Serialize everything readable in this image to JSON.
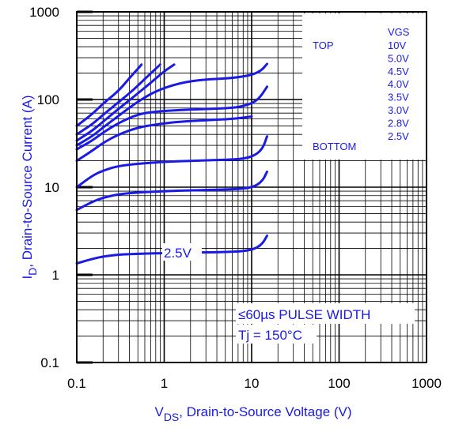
{
  "chart_data": {
    "type": "line",
    "title": "",
    "xlabel": "V",
    "xlabel_sub": "DS",
    "xlabel_rest": ", Drain-to-Source Voltage (V)",
    "ylabel": "I",
    "ylabel_sub": "D",
    "ylabel_rest": ", Drain-to-Source Current (A)",
    "xscale": "log",
    "yscale": "log",
    "xlim": [
      0.1,
      1000
    ],
    "ylim": [
      0.1,
      1000
    ],
    "x_ticks": [
      0.1,
      1,
      10,
      100,
      1000
    ],
    "x_tick_labels": [
      "0.1",
      "1",
      "10",
      "100",
      "1000"
    ],
    "y_ticks": [
      0.1,
      1,
      10,
      100,
      1000
    ],
    "y_tick_labels": [
      "0.1",
      "1",
      "10",
      "100",
      "1000"
    ],
    "grid": true,
    "line_color": "#1a1ae6",
    "legend": {
      "placement": "top-right",
      "heading": "VGS",
      "top_label": "TOP",
      "bottom_label": "BOTTOM",
      "entries": [
        "10V",
        "5.0V",
        "4.5V",
        "4.0V",
        "3.5V",
        "3.0V",
        "2.8V",
        "2.5V"
      ]
    },
    "annotations": {
      "pulse": "≤60µs PULSE WIDTH",
      "temp": "Tj = 150°C",
      "curve_label": "2.5V"
    },
    "series": [
      {
        "name": "10V",
        "points": [
          [
            0.1,
            50
          ],
          [
            0.15,
            68
          ],
          [
            0.2,
            90
          ],
          [
            0.3,
            125
          ],
          [
            0.4,
            175
          ],
          [
            0.55,
            250
          ]
        ]
      },
      {
        "name": "5.0V",
        "points": [
          [
            0.1,
            40
          ],
          [
            0.15,
            52
          ],
          [
            0.2,
            67
          ],
          [
            0.3,
            93
          ],
          [
            0.45,
            130
          ],
          [
            0.65,
            185
          ],
          [
            0.9,
            250
          ]
        ]
      },
      {
        "name": "4.5V",
        "points": [
          [
            0.1,
            34
          ],
          [
            0.15,
            44
          ],
          [
            0.2,
            56
          ],
          [
            0.3,
            78
          ],
          [
            0.45,
            108
          ],
          [
            0.7,
            155
          ],
          [
            1.0,
            210
          ],
          [
            1.3,
            250
          ]
        ]
      },
      {
        "name": "4.0V",
        "points": [
          [
            0.1,
            30
          ],
          [
            0.15,
            38
          ],
          [
            0.2,
            48
          ],
          [
            0.3,
            65
          ],
          [
            0.5,
            95
          ],
          [
            0.8,
            125
          ],
          [
            1.5,
            155
          ],
          [
            3.0,
            170
          ],
          [
            6.0,
            175
          ],
          [
            10.0,
            190
          ],
          [
            13.0,
            215
          ],
          [
            15.0,
            255
          ]
        ]
      },
      {
        "name": "3.5V",
        "points": [
          [
            0.1,
            27
          ],
          [
            0.15,
            34
          ],
          [
            0.2,
            42
          ],
          [
            0.3,
            54
          ],
          [
            0.5,
            68
          ],
          [
            0.8,
            73
          ],
          [
            1.5,
            76
          ],
          [
            3.0,
            78
          ],
          [
            6.0,
            80
          ],
          [
            9.0,
            86
          ],
          [
            12.0,
            100
          ],
          [
            15.0,
            140
          ]
        ]
      },
      {
        "name": "3.0V",
        "points": [
          [
            0.1,
            20
          ],
          [
            0.15,
            26
          ],
          [
            0.2,
            32
          ],
          [
            0.3,
            40
          ],
          [
            0.5,
            48
          ],
          [
            0.8,
            52
          ],
          [
            1.5,
            56
          ],
          [
            3.0,
            58
          ],
          [
            6.0,
            60
          ],
          [
            10.0,
            64
          ]
        ]
      },
      {
        "name": "2.8V",
        "points": [
          [
            0.1,
            10
          ],
          [
            0.15,
            13.5
          ],
          [
            0.2,
            15.5
          ],
          [
            0.3,
            17.5
          ],
          [
            0.5,
            18.5
          ],
          [
            1.0,
            19.5
          ],
          [
            2.0,
            20
          ],
          [
            5.0,
            20.5
          ],
          [
            8.0,
            21
          ],
          [
            11.0,
            23
          ],
          [
            13.5,
            28
          ],
          [
            15.0,
            38
          ]
        ]
      },
      {
        "name": "2.5V",
        "points": [
          [
            0.1,
            5.5
          ],
          [
            0.15,
            6.8
          ],
          [
            0.2,
            7.6
          ],
          [
            0.3,
            8.3
          ],
          [
            0.5,
            8.7
          ],
          [
            1.0,
            9.0
          ],
          [
            2.0,
            9.2
          ],
          [
            5.0,
            9.4
          ],
          [
            8.0,
            9.6
          ],
          [
            11.0,
            10.2
          ],
          [
            13.5,
            12
          ],
          [
            15.0,
            15
          ]
        ]
      },
      {
        "name": "2.5V-low",
        "points": [
          [
            0.1,
            1.35
          ],
          [
            0.15,
            1.52
          ],
          [
            0.2,
            1.62
          ],
          [
            0.3,
            1.7
          ],
          [
            0.5,
            1.74
          ],
          [
            1.0,
            1.77
          ],
          [
            2.0,
            1.79
          ],
          [
            5.0,
            1.82
          ],
          [
            8.0,
            1.86
          ],
          [
            11.0,
            1.98
          ],
          [
            13.5,
            2.3
          ],
          [
            15.0,
            2.8
          ]
        ]
      }
    ]
  }
}
